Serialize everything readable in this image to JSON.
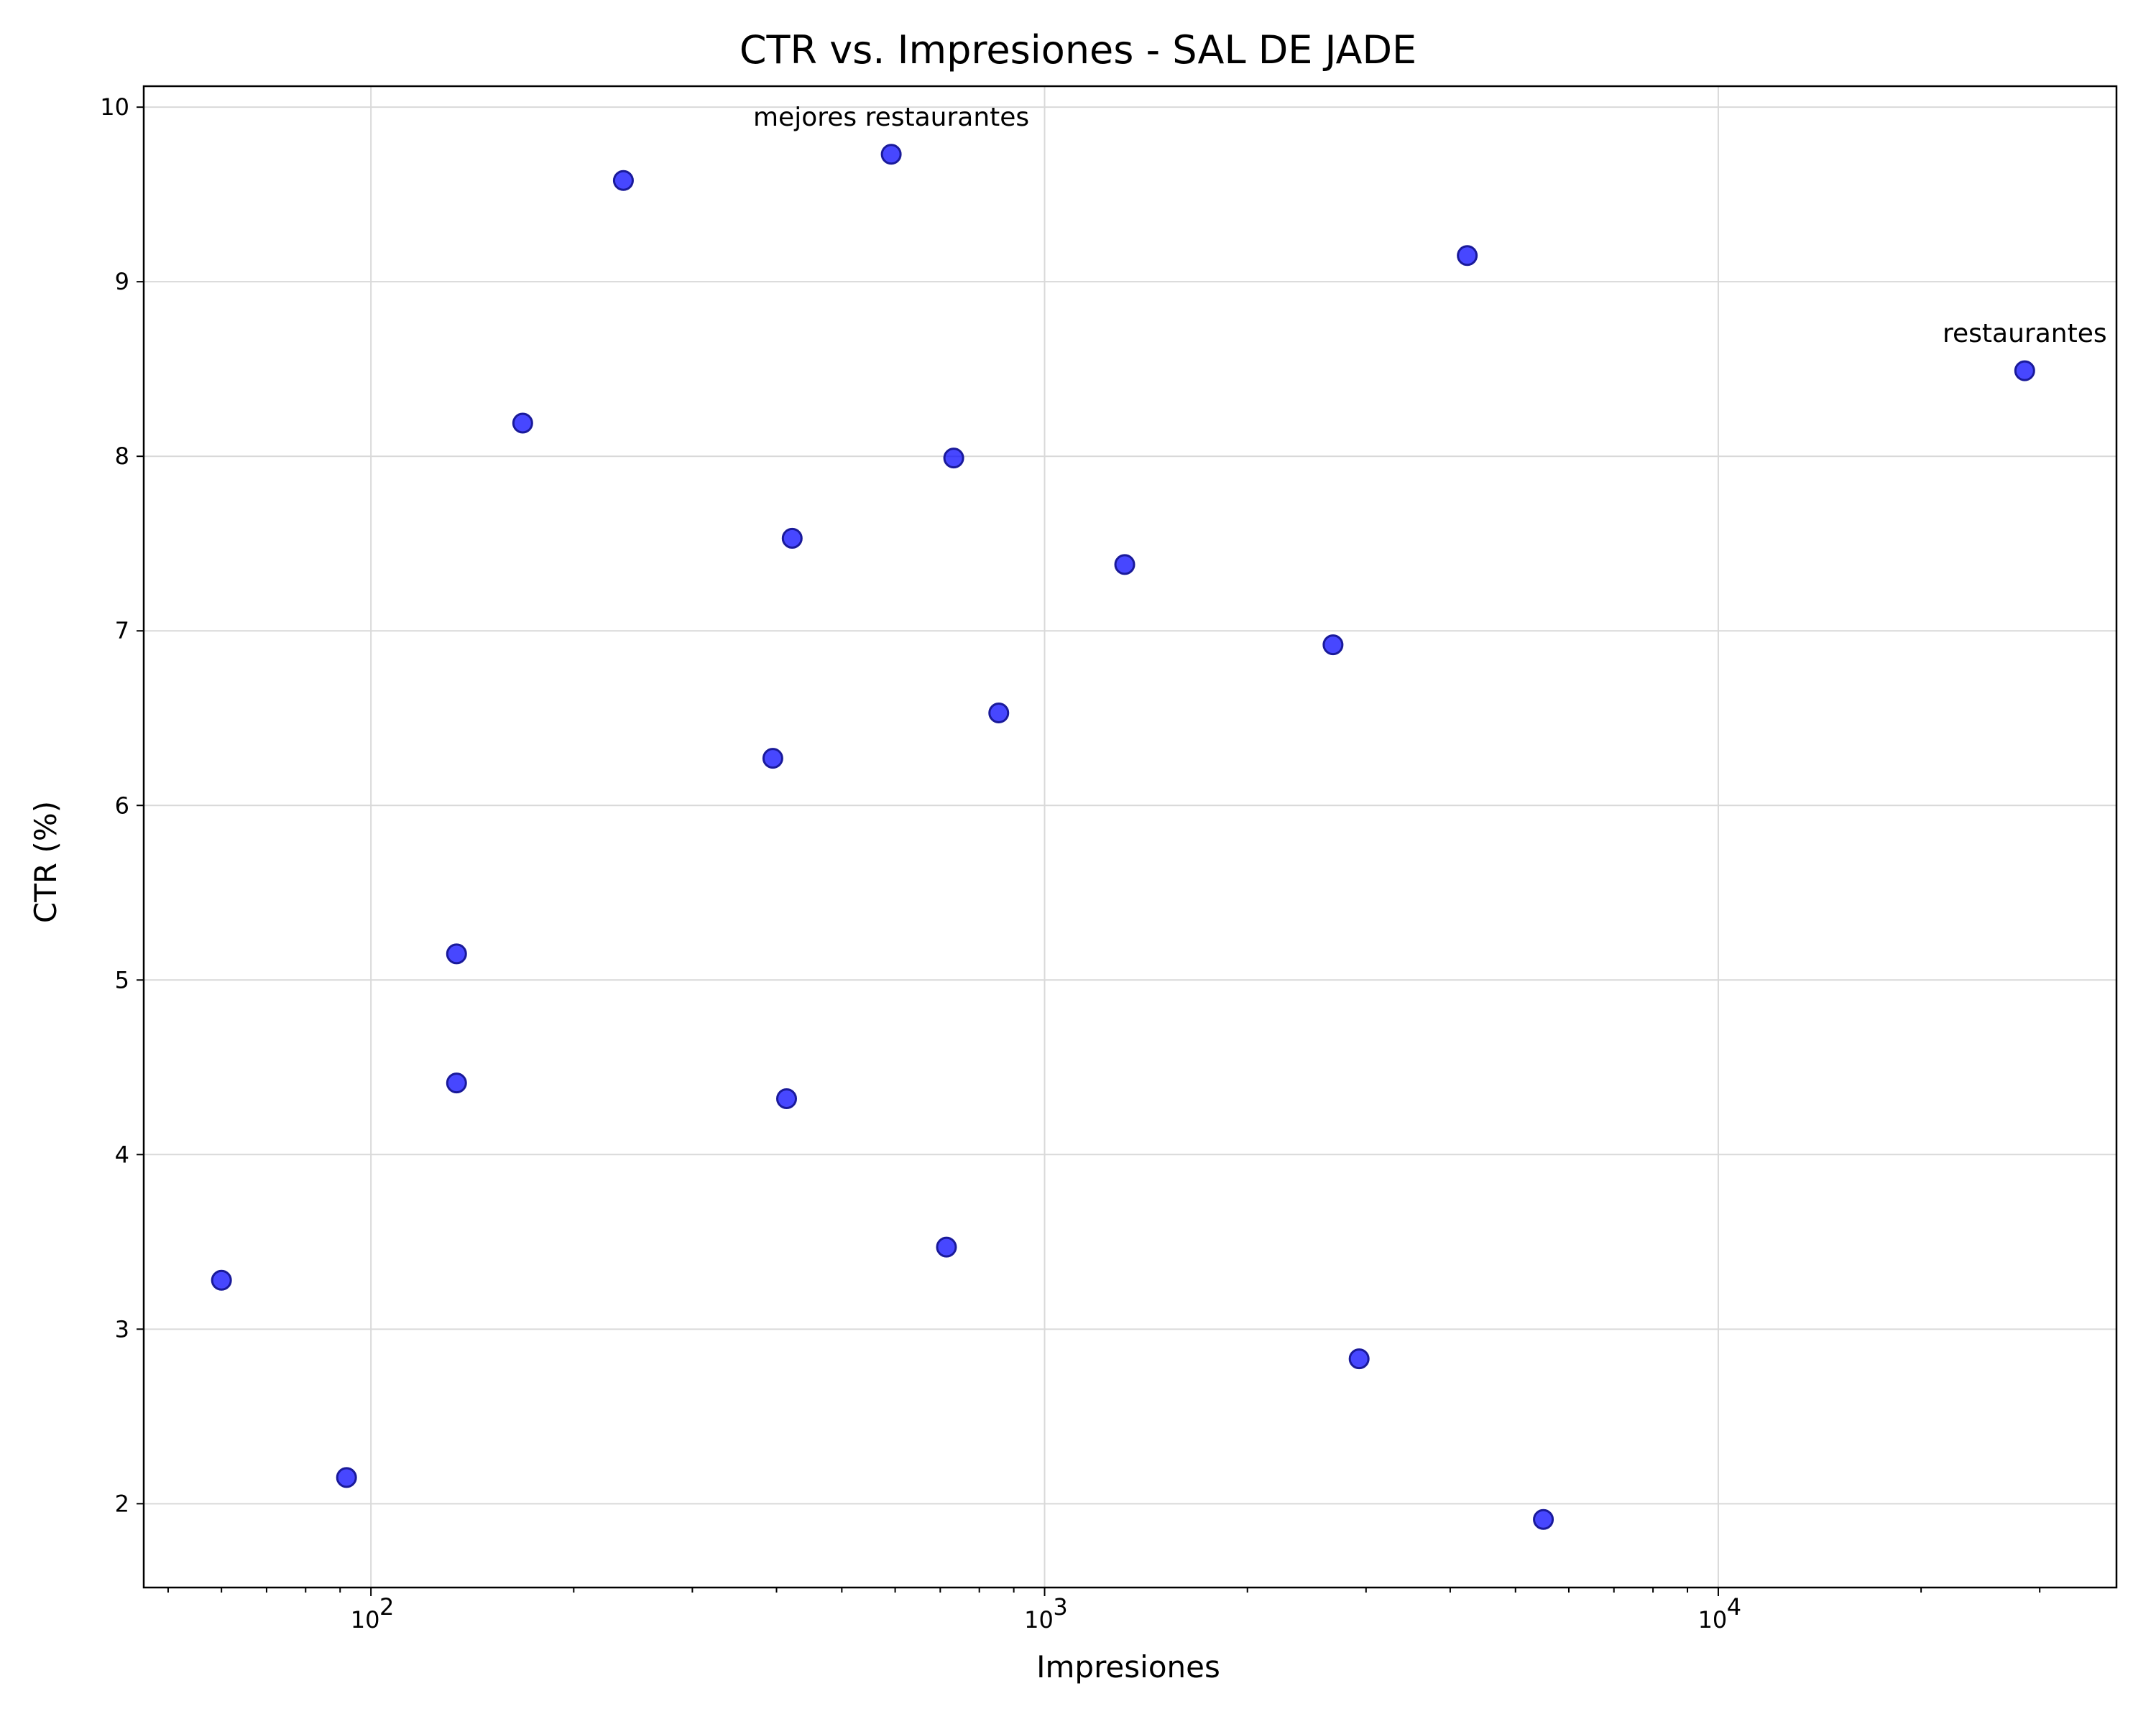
{
  "chart_data": {
    "type": "scatter",
    "title": "CTR vs. Impresiones - SAL DE JADE",
    "xlabel": "Impresiones",
    "ylabel": "CTR (%)",
    "x_scale": "log",
    "xlim": [
      46,
      39000
    ],
    "ylim": [
      1.52,
      10.12
    ],
    "grid": true,
    "point_color": "#0000ff",
    "x_ticks": [
      {
        "value": 100,
        "label": "10",
        "exp": "2"
      },
      {
        "value": 1000,
        "label": "10",
        "exp": "3"
      },
      {
        "value": 10000,
        "label": "10",
        "exp": "4"
      }
    ],
    "y_ticks": [
      {
        "value": 2,
        "label": "2"
      },
      {
        "value": 3,
        "label": "3"
      },
      {
        "value": 4,
        "label": "4"
      },
      {
        "value": 5,
        "label": "5"
      },
      {
        "value": 6,
        "label": "6"
      },
      {
        "value": 7,
        "label": "7"
      },
      {
        "value": 8,
        "label": "8"
      },
      {
        "value": 9,
        "label": "9"
      },
      {
        "value": 10,
        "label": "10"
      }
    ],
    "points": [
      {
        "x": 60,
        "y": 3.28
      },
      {
        "x": 92,
        "y": 2.15
      },
      {
        "x": 134,
        "y": 5.15
      },
      {
        "x": 134,
        "y": 4.41
      },
      {
        "x": 168,
        "y": 8.19
      },
      {
        "x": 237,
        "y": 9.58
      },
      {
        "x": 395,
        "y": 6.27
      },
      {
        "x": 414,
        "y": 4.32
      },
      {
        "x": 422,
        "y": 7.53
      },
      {
        "x": 592,
        "y": 9.73,
        "label": "mejores restaurantes"
      },
      {
        "x": 715,
        "y": 3.47
      },
      {
        "x": 733,
        "y": 7.99
      },
      {
        "x": 855,
        "y": 6.53
      },
      {
        "x": 1315,
        "y": 7.38
      },
      {
        "x": 2680,
        "y": 6.92
      },
      {
        "x": 2930,
        "y": 2.83
      },
      {
        "x": 4240,
        "y": 9.15
      },
      {
        "x": 5500,
        "y": 1.91
      },
      {
        "x": 28500,
        "y": 8.49,
        "label": "restaurantes"
      }
    ]
  }
}
